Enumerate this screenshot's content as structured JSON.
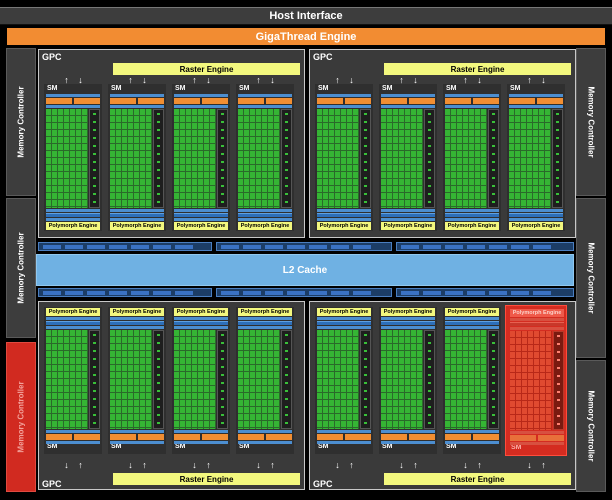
{
  "host_interface": "Host Interface",
  "gigathread": "GigaThread Engine",
  "memory_controllers": [
    "Memory Controller",
    "Memory Controller",
    "Memory Controller",
    "Memory Controller",
    "Memory Controller",
    "Memory Controller"
  ],
  "gpcs": [
    {
      "label": "GPC",
      "raster": "Raster Engine",
      "sms": [
        {
          "label": "SM",
          "polymorph": "Polymorph Engine"
        },
        {
          "label": "SM",
          "polymorph": "Polymorph Engine"
        },
        {
          "label": "SM",
          "polymorph": "Polymorph Engine"
        },
        {
          "label": "SM",
          "polymorph": "Polymorph Engine"
        }
      ]
    },
    {
      "label": "GPC",
      "raster": "Raster Engine",
      "sms": [
        {
          "label": "SM",
          "polymorph": "Polymorph Engine"
        },
        {
          "label": "SM",
          "polymorph": "Polymorph Engine"
        },
        {
          "label": "SM",
          "polymorph": "Polymorph Engine"
        },
        {
          "label": "SM",
          "polymorph": "Polymorph Engine"
        }
      ]
    },
    {
      "label": "GPC",
      "raster": "Raster Engine",
      "sms": [
        {
          "label": "SM",
          "polymorph": "Polymorph Engine"
        },
        {
          "label": "SM",
          "polymorph": "Polymorph Engine"
        },
        {
          "label": "SM",
          "polymorph": "Polymorph Engine"
        },
        {
          "label": "SM",
          "polymorph": "Polymorph Engine"
        }
      ]
    },
    {
      "label": "GPC",
      "raster": "Raster Engine",
      "sms": [
        {
          "label": "SM",
          "polymorph": "Polymorph Engine"
        },
        {
          "label": "SM",
          "polymorph": "Polymorph Engine"
        },
        {
          "label": "SM",
          "polymorph": "Polymorph Engine"
        },
        {
          "label": "SM",
          "polymorph": "Polymorph Engine"
        }
      ]
    }
  ],
  "l2_cache": "L2 Cache",
  "colors": {
    "host": "#3d3d3d",
    "gigathread": "#f28c32",
    "raster": "#f3f87e",
    "cuda_core": "#35b534",
    "l2": "#6fb1e3",
    "disabled_highlight": "#d12a20"
  },
  "disabled_units": {
    "sm": "bottom-right GPC, SM 4",
    "memory_controller": "left column, bottom"
  }
}
